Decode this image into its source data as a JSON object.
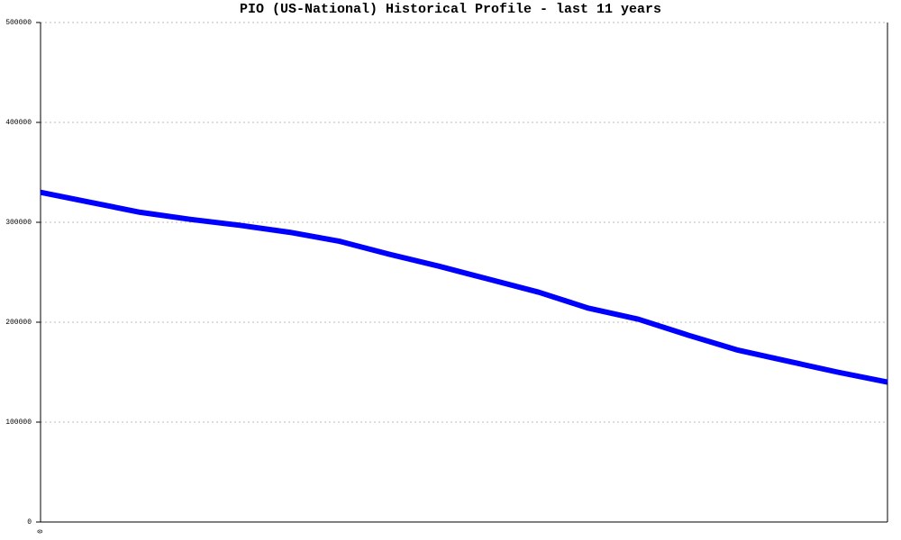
{
  "chart_data": {
    "type": "line",
    "title": "PIO (US-National) Historical Profile - last 11 years",
    "categories": [
      "0",
      null,
      null,
      null,
      null,
      null,
      null,
      null,
      null,
      null,
      null,
      null,
      null,
      null,
      null,
      null,
      null,
      null
    ],
    "series": [
      {
        "name": "PIO",
        "color": "#0000ff",
        "values": [
          330000,
          320000,
          310000,
          303000,
          297000,
          290000,
          281000,
          268000,
          256000,
          243000,
          230000,
          214000,
          203000,
          187000,
          172000,
          161000,
          150000,
          140000
        ]
      }
    ],
    "ylim": [
      0,
      500000
    ],
    "yticks": [
      0,
      100000,
      200000,
      300000,
      400000,
      500000
    ],
    "grid": true
  }
}
